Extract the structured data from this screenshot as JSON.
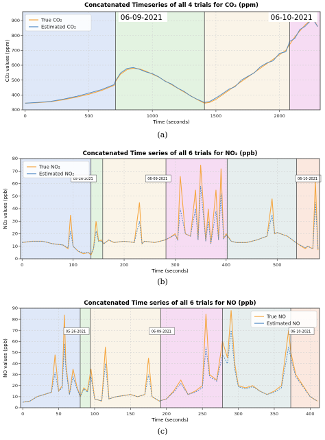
{
  "chart_data": [
    {
      "type": "line",
      "title": "Concatenated Timeseries of all 4 trials for CO₂ (ppm)",
      "xlabel": "Time (seconds)",
      "ylabel": "CO₂ values (ppm)",
      "xlim": [
        -20,
        2320
      ],
      "ylim": [
        300,
        960
      ],
      "xticks": [
        0,
        500,
        1000,
        1500,
        2000
      ],
      "yticks": [
        300,
        400,
        500,
        600,
        700,
        800,
        900
      ],
      "grid": true,
      "legend": "top-left",
      "caption": "(a)",
      "segments": [
        {
          "x0": -20,
          "x1": 710,
          "color": "#dfe8f8"
        },
        {
          "x0": 710,
          "x1": 1410,
          "color": "#e3f3e1"
        },
        {
          "x0": 1410,
          "x1": 2080,
          "color": "#faf4e8"
        },
        {
          "x0": 2080,
          "x1": 2320,
          "color": "#f6dcf3"
        }
      ],
      "dividers": [
        710,
        1410,
        2080
      ],
      "date_labels": [
        {
          "text": "06-09-2021",
          "x": 750,
          "y": 905
        },
        {
          "text": "06-10-2021",
          "x": 1930,
          "y": 905
        }
      ],
      "label_size": "large",
      "series": [
        {
          "name": "True CO₂",
          "color": "#f5a742",
          "x": [
            0,
            100,
            200,
            300,
            400,
            500,
            600,
            700,
            710,
            750,
            800,
            850,
            900,
            950,
            1000,
            1050,
            1100,
            1150,
            1200,
            1250,
            1300,
            1350,
            1410,
            1450,
            1500,
            1550,
            1600,
            1650,
            1700,
            1750,
            1800,
            1850,
            1900,
            1950,
            2000,
            2050,
            2080,
            2120,
            2160,
            2200,
            2240,
            2270,
            2300
          ],
          "values": [
            345,
            348,
            355,
            368,
            385,
            405,
            430,
            465,
            490,
            540,
            570,
            580,
            575,
            560,
            540,
            520,
            495,
            470,
            445,
            420,
            395,
            370,
            345,
            350,
            370,
            400,
            430,
            460,
            490,
            520,
            550,
            580,
            610,
            640,
            670,
            700,
            740,
            790,
            830,
            870,
            900,
            905,
            860
          ]
        },
        {
          "name": "Estimated CO₂",
          "color": "#4c88c4",
          "x": [
            0,
            100,
            200,
            300,
            400,
            500,
            600,
            700,
            710,
            750,
            800,
            850,
            900,
            950,
            1000,
            1050,
            1100,
            1150,
            1200,
            1250,
            1300,
            1350,
            1410,
            1450,
            1500,
            1550,
            1600,
            1650,
            1700,
            1750,
            1800,
            1850,
            1900,
            1950,
            2000,
            2050,
            2080,
            2120,
            2160,
            2200,
            2240,
            2270,
            2300
          ],
          "values": [
            345,
            350,
            357,
            372,
            390,
            412,
            436,
            470,
            495,
            548,
            578,
            585,
            572,
            555,
            543,
            522,
            492,
            474,
            446,
            424,
            393,
            372,
            350,
            356,
            380,
            408,
            438,
            455,
            500,
            525,
            548,
            590,
            615,
            630,
            680,
            690,
            760,
            780,
            840,
            860,
            895,
            900,
            860
          ]
        }
      ]
    },
    {
      "type": "line",
      "title": "Concatenated Time series of all 6 trials for NO₂ (ppb)",
      "xlabel": "Time (seconds)",
      "ylabel": "NO₂ values (ppb)",
      "xlim": [
        -3,
        583
      ],
      "ylim": [
        0,
        80
      ],
      "xticks": [
        0,
        100,
        200,
        300,
        400,
        500
      ],
      "yticks": [
        0,
        10,
        20,
        30,
        40,
        50,
        60,
        70,
        80
      ],
      "grid": true,
      "legend": "top-left",
      "caption": "(b)",
      "segments": [
        {
          "x0": -3,
          "x1": 135,
          "color": "#dfe8f8"
        },
        {
          "x0": 135,
          "x1": 158,
          "color": "#e3f3e1"
        },
        {
          "x0": 158,
          "x1": 282,
          "color": "#faf4e8"
        },
        {
          "x0": 282,
          "x1": 402,
          "color": "#f6dcf3"
        },
        {
          "x0": 402,
          "x1": 538,
          "color": "#e6eeee"
        },
        {
          "x0": 538,
          "x1": 583,
          "color": "#fbe8df"
        }
      ],
      "dividers": [
        135,
        158,
        282,
        402,
        538
      ],
      "date_labels": [
        {
          "text": "05-26-2021",
          "x": 100,
          "y": 63
        },
        {
          "text": "06-09-2021",
          "x": 246,
          "y": 63
        },
        {
          "text": "06-10-2021",
          "x": 540,
          "y": 63
        }
      ],
      "label_size": "small",
      "series": [
        {
          "name": "True NO₂",
          "color": "#f5a742",
          "x": [
            0,
            20,
            40,
            60,
            80,
            90,
            95,
            100,
            110,
            120,
            130,
            135,
            140,
            145,
            150,
            155,
            160,
            170,
            180,
            200,
            220,
            230,
            235,
            240,
            260,
            280,
            290,
            300,
            305,
            310,
            320,
            330,
            340,
            345,
            350,
            360,
            365,
            370,
            380,
            385,
            390,
            395,
            400,
            410,
            420,
            440,
            460,
            480,
            490,
            495,
            500,
            520,
            540,
            555,
            560,
            570,
            575,
            580
          ],
          "values": [
            13,
            14,
            14,
            12,
            11,
            8,
            35,
            10,
            6,
            4,
            5,
            3,
            8,
            30,
            14,
            15,
            12,
            15,
            13,
            14,
            13,
            45,
            12,
            14,
            13,
            15,
            17,
            20,
            15,
            66,
            20,
            18,
            55,
            15,
            75,
            14,
            40,
            12,
            55,
            15,
            72,
            16,
            20,
            14,
            13,
            13,
            15,
            18,
            48,
            20,
            21,
            18,
            12,
            8,
            10,
            8,
            62,
            7
          ]
        },
        {
          "name": "Estimated NO₂",
          "color": "#4c88c4",
          "x": [
            0,
            20,
            40,
            60,
            80,
            90,
            95,
            100,
            110,
            120,
            130,
            135,
            140,
            145,
            150,
            155,
            160,
            170,
            180,
            200,
            220,
            230,
            235,
            240,
            260,
            280,
            290,
            300,
            305,
            310,
            320,
            330,
            340,
            345,
            350,
            360,
            365,
            370,
            380,
            385,
            390,
            395,
            400,
            410,
            420,
            440,
            460,
            480,
            490,
            495,
            500,
            520,
            540,
            555,
            560,
            570,
            575,
            580
          ],
          "values": [
            13,
            14,
            14,
            12,
            11,
            9,
            22,
            10,
            6,
            5,
            5,
            4,
            8,
            22,
            14,
            14,
            12,
            15,
            13,
            14,
            13,
            30,
            12,
            14,
            13,
            15,
            17,
            19,
            15,
            40,
            20,
            18,
            40,
            15,
            58,
            14,
            30,
            12,
            38,
            15,
            52,
            16,
            19,
            14,
            13,
            13,
            15,
            18,
            35,
            20,
            21,
            18,
            12,
            9,
            10,
            8,
            45,
            8
          ]
        }
      ]
    },
    {
      "type": "line",
      "title": "Concatenated Time series of all 6 trials for NO (ppb)",
      "xlabel": "Time (seconds)",
      "ylabel": "NO values (ppb)",
      "xlim": [
        -3,
        413
      ],
      "ylim": [
        0,
        90
      ],
      "xticks": [
        0,
        50,
        100,
        150,
        200,
        250,
        300,
        350,
        400
      ],
      "yticks": [
        0,
        10,
        20,
        30,
        40,
        50,
        60,
        70,
        80,
        90
      ],
      "grid": true,
      "legend": "top-right",
      "caption": "(c)",
      "segments": [
        {
          "x0": -3,
          "x1": 80,
          "color": "#dfe8f8"
        },
        {
          "x0": 80,
          "x1": 94,
          "color": "#e3f3e1"
        },
        {
          "x0": 94,
          "x1": 192,
          "color": "#faf4e8"
        },
        {
          "x0": 192,
          "x1": 278,
          "color": "#f6dcf3"
        },
        {
          "x0": 278,
          "x1": 373,
          "color": "#e6eeee"
        },
        {
          "x0": 373,
          "x1": 413,
          "color": "#fbe8df"
        }
      ],
      "dividers": [
        80,
        94,
        192,
        278,
        373
      ],
      "date_labels": [
        {
          "text": "05-26-2021",
          "x": 60,
          "y": 68
        },
        {
          "text": "06-09-2021",
          "x": 179,
          "y": 68
        },
        {
          "text": "06-10-2021",
          "x": 373,
          "y": 68
        }
      ],
      "label_size": "small",
      "series": [
        {
          "name": "True NO",
          "color": "#f5a742",
          "x": [
            0,
            10,
            20,
            30,
            40,
            45,
            50,
            55,
            58,
            60,
            65,
            70,
            75,
            80,
            85,
            90,
            95,
            100,
            110,
            115,
            120,
            130,
            150,
            160,
            170,
            175,
            180,
            190,
            200,
            210,
            220,
            230,
            240,
            250,
            255,
            260,
            270,
            278,
            285,
            290,
            295,
            300,
            310,
            320,
            330,
            340,
            350,
            360,
            370,
            373,
            380,
            390,
            400,
            405,
            410
          ],
          "values": [
            5,
            6,
            10,
            12,
            14,
            48,
            15,
            20,
            84,
            40,
            12,
            35,
            20,
            10,
            18,
            15,
            35,
            8,
            6,
            55,
            8,
            10,
            12,
            10,
            12,
            45,
            10,
            6,
            8,
            15,
            25,
            12,
            15,
            20,
            85,
            30,
            25,
            60,
            45,
            88,
            40,
            20,
            18,
            20,
            15,
            12,
            15,
            20,
            70,
            50,
            30,
            20,
            10,
            8,
            6
          ]
        },
        {
          "name": "Estimated NO",
          "color": "#4c88c4",
          "x": [
            0,
            10,
            20,
            30,
            40,
            45,
            50,
            55,
            58,
            60,
            65,
            70,
            75,
            80,
            85,
            90,
            95,
            100,
            110,
            115,
            120,
            130,
            150,
            160,
            170,
            175,
            180,
            190,
            200,
            210,
            220,
            230,
            240,
            250,
            255,
            260,
            270,
            278,
            285,
            290,
            295,
            300,
            310,
            320,
            330,
            340,
            350,
            360,
            370,
            373,
            380,
            390,
            400,
            405,
            410
          ],
          "values": [
            5,
            6,
            10,
            12,
            14,
            32,
            15,
            18,
            58,
            35,
            12,
            28,
            18,
            10,
            17,
            14,
            28,
            8,
            6,
            40,
            8,
            10,
            12,
            10,
            12,
            30,
            10,
            6,
            8,
            14,
            22,
            12,
            14,
            18,
            55,
            28,
            24,
            48,
            40,
            70,
            35,
            19,
            17,
            19,
            15,
            12,
            14,
            18,
            55,
            45,
            28,
            19,
            10,
            8,
            6
          ]
        }
      ]
    }
  ]
}
